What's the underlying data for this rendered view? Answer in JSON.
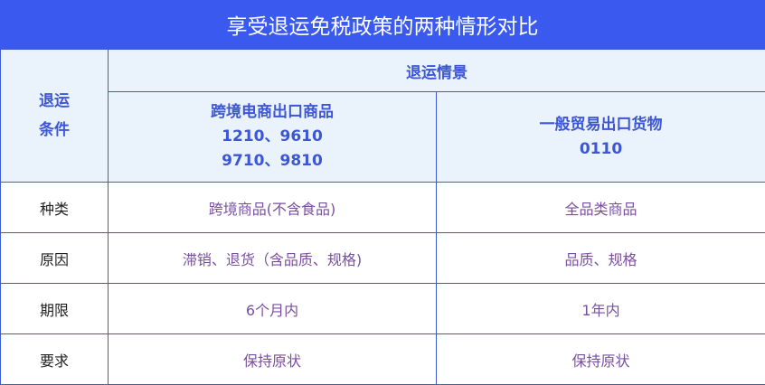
{
  "title": "享受退运免税政策的两种情形对比",
  "header": {
    "condition_label": [
      "退运",
      "条件"
    ],
    "scenario_label": "退运情景",
    "columns": [
      {
        "lines": [
          "跨境电商出口商品",
          "1210、9610",
          "9710、9810"
        ]
      },
      {
        "lines": [
          "一般贸易出口货物",
          "0110"
        ]
      }
    ]
  },
  "rows": [
    {
      "label": "种类",
      "values": [
        "跨境商品(不含食品)",
        "全品类商品"
      ]
    },
    {
      "label": "原因",
      "values": [
        "滞销、退货（含品质、规格)",
        "品质、规格"
      ]
    },
    {
      "label": "期限",
      "values": [
        "6个月内",
        "1年内"
      ]
    },
    {
      "label": "要求",
      "values": [
        "保持原状",
        "保持原状"
      ]
    }
  ],
  "colors": {
    "title_bg": "#3a5aef",
    "header_bg": "#eaf3fb",
    "header_text": "#3d56d6",
    "value_text": "#7a4fa0",
    "border": "#3d5bd4"
  }
}
